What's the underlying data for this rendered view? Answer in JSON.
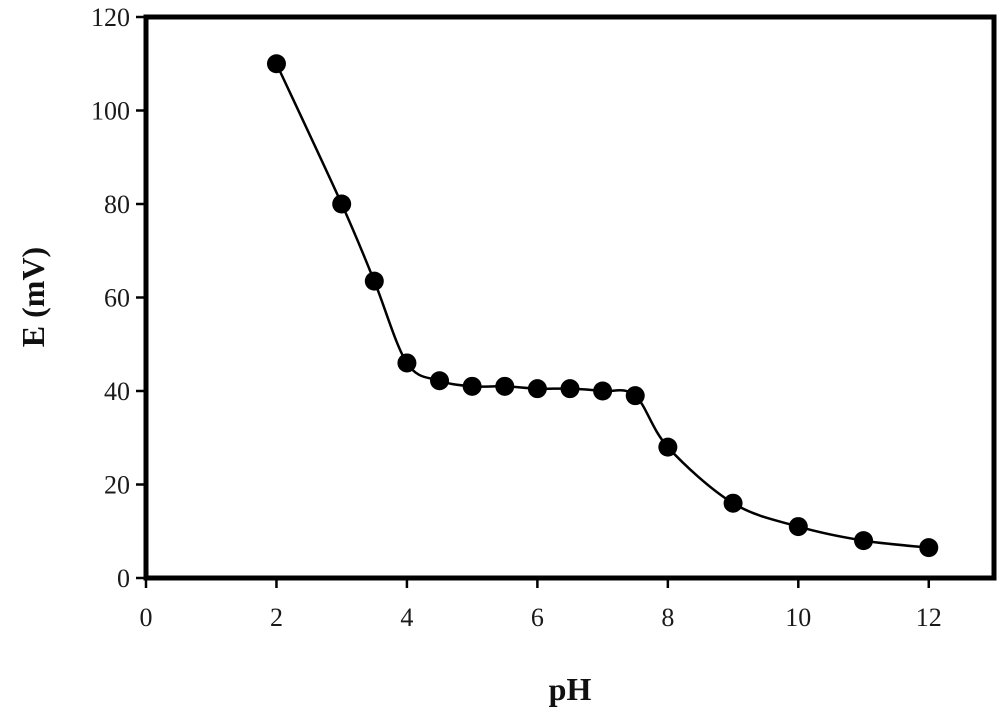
{
  "chart_data": {
    "type": "line",
    "title": "",
    "xlabel": "pH",
    "ylabel": "E (mV)",
    "xlim": [
      0,
      13
    ],
    "ylim": [
      0,
      120
    ],
    "xticks": [
      0,
      2,
      4,
      6,
      8,
      10,
      12
    ],
    "yticks": [
      0,
      20,
      40,
      60,
      80,
      100,
      120
    ],
    "xtick_labels": [
      "0",
      "2",
      "4",
      "6",
      "8",
      "10",
      "12"
    ],
    "ytick_labels": [
      "0",
      "20",
      "40",
      "60",
      "80",
      "100",
      "120"
    ],
    "grid": false,
    "legend": "none",
    "marker": "filled-circle",
    "colors": {
      "line": "#000000",
      "marker": "#000000",
      "frame": "#000000"
    },
    "series": [
      {
        "x": [
          2,
          3,
          3.5,
          4,
          4.5,
          5,
          5.5,
          6,
          6.5,
          7,
          7.5,
          8,
          9,
          10,
          11,
          12
        ],
        "y": [
          110,
          80,
          63.5,
          46,
          42.2,
          41,
          41,
          40.5,
          40.5,
          40,
          39,
          28,
          16,
          11,
          8,
          6.5
        ]
      }
    ]
  }
}
